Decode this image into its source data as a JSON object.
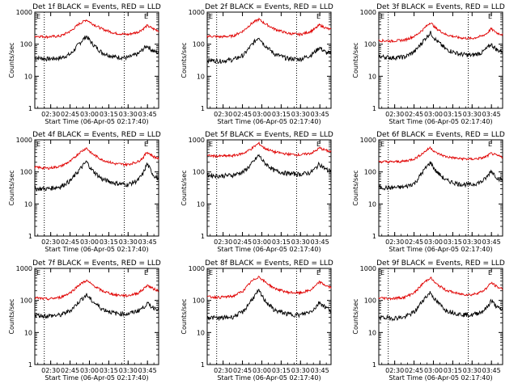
{
  "figure": {
    "background": "#ffffff",
    "events_color": "#000000",
    "lld_color": "#e00000"
  },
  "chart_data": [
    {
      "type": "line",
      "title": "Det 1f BLACK = Events, RED = LLD",
      "xlabel": "Start Time (06-Apr-05 02:17:40)",
      "ylabel": "Counts/sec",
      "y_scale": "log",
      "ylim": [
        1,
        1000
      ],
      "yticks": [
        "1",
        "10",
        "100",
        "1000"
      ],
      "xticks": [
        "02:30",
        "02:45",
        "03:00",
        "03:15",
        "03:30",
        "03:45"
      ],
      "x_range_minutes_after_start": [
        0,
        96
      ],
      "vertical_dotted_lines": [
        "02:25",
        "03:27"
      ],
      "corner_marks": [
        "E",
        "E"
      ],
      "series": [
        {
          "name": "Events",
          "color": "#000000",
          "x_minutes": [
            0,
            10,
            20,
            28,
            34,
            40,
            44,
            52,
            62,
            72,
            80,
            84,
            87,
            92,
            96
          ],
          "y": [
            38,
            35,
            37,
            50,
            100,
            180,
            110,
            55,
            40,
            38,
            50,
            70,
            90,
            60,
            55
          ]
        },
        {
          "name": "LLD",
          "color": "#e00000",
          "x_minutes": [
            0,
            10,
            20,
            28,
            34,
            40,
            44,
            52,
            62,
            72,
            80,
            84,
            87,
            92,
            96
          ],
          "y": [
            180,
            170,
            180,
            260,
            420,
            580,
            450,
            300,
            220,
            200,
            240,
            300,
            380,
            300,
            260
          ]
        }
      ]
    },
    {
      "type": "line",
      "title": "Det 2f BLACK = Events, RED = LLD",
      "xlabel": "Start Time (06-Apr-05 02:17:40)",
      "ylabel": "Counts/sec",
      "y_scale": "log",
      "ylim": [
        1,
        1000
      ],
      "yticks": [
        "1",
        "10",
        "100",
        "1000"
      ],
      "xticks": [
        "02:30",
        "02:45",
        "03:00",
        "03:15",
        "03:30",
        "03:45"
      ],
      "x_range_minutes_after_start": [
        0,
        96
      ],
      "vertical_dotted_lines": [
        "02:25",
        "03:27"
      ],
      "corner_marks": [
        "E",
        "E"
      ],
      "series": [
        {
          "name": "Events",
          "color": "#000000",
          "x_minutes": [
            0,
            10,
            20,
            28,
            34,
            40,
            44,
            52,
            62,
            72,
            80,
            84,
            87,
            92,
            96
          ],
          "y": [
            32,
            30,
            33,
            45,
            90,
            170,
            100,
            50,
            36,
            34,
            45,
            60,
            80,
            55,
            50
          ]
        },
        {
          "name": "LLD",
          "color": "#e00000",
          "x_minutes": [
            0,
            10,
            20,
            28,
            34,
            40,
            44,
            52,
            62,
            72,
            80,
            84,
            87,
            92,
            96
          ],
          "y": [
            180,
            170,
            180,
            260,
            430,
            600,
            460,
            300,
            220,
            200,
            250,
            310,
            400,
            320,
            280
          ]
        }
      ]
    },
    {
      "type": "line",
      "title": "Det 3f BLACK = Events, RED = LLD",
      "xlabel": "Start Time (06-Apr-05 02:17:40)",
      "ylabel": "Counts/sec",
      "y_scale": "log",
      "ylim": [
        1,
        1000
      ],
      "yticks": [
        "1",
        "10",
        "100",
        "1000"
      ],
      "xticks": [
        "02:30",
        "02:45",
        "03:00",
        "03:15",
        "03:30",
        "03:45"
      ],
      "x_range_minutes_after_start": [
        0,
        96
      ],
      "vertical_dotted_lines": [
        "02:25",
        "03:27"
      ],
      "corner_marks": [
        "E",
        "E"
      ],
      "series": [
        {
          "name": "Events",
          "color": "#000000",
          "x_minutes": [
            0,
            10,
            20,
            28,
            34,
            40,
            44,
            52,
            62,
            72,
            80,
            84,
            87,
            92,
            96
          ],
          "y": [
            42,
            38,
            40,
            60,
            120,
            230,
            140,
            70,
            50,
            45,
            55,
            75,
            100,
            65,
            60
          ]
        },
        {
          "name": "LLD",
          "color": "#e00000",
          "x_minutes": [
            0,
            10,
            20,
            28,
            34,
            40,
            44,
            52,
            62,
            72,
            80,
            84,
            87,
            92,
            96
          ],
          "y": [
            130,
            125,
            135,
            180,
            280,
            480,
            320,
            200,
            160,
            150,
            180,
            220,
            300,
            220,
            200
          ]
        }
      ]
    },
    {
      "type": "line",
      "title": "Det 4f BLACK = Events, RED = LLD",
      "xlabel": "Start Time (06-Apr-05 02:17:40)",
      "ylabel": "Counts/sec",
      "y_scale": "log",
      "ylim": [
        1,
        1000
      ],
      "yticks": [
        "1",
        "10",
        "100",
        "1000"
      ],
      "xticks": [
        "02:30",
        "02:45",
        "03:00",
        "03:15",
        "03:30",
        "03:45"
      ],
      "x_range_minutes_after_start": [
        0,
        96
      ],
      "vertical_dotted_lines": [
        "02:25",
        "03:27"
      ],
      "corner_marks": [
        "E",
        "E"
      ],
      "series": [
        {
          "name": "Events",
          "color": "#000000",
          "x_minutes": [
            0,
            10,
            20,
            28,
            34,
            40,
            44,
            52,
            62,
            72,
            80,
            84,
            87,
            92,
            96
          ],
          "y": [
            30,
            30,
            35,
            55,
            110,
            210,
            120,
            60,
            45,
            40,
            55,
            90,
            180,
            80,
            60
          ]
        },
        {
          "name": "LLD",
          "color": "#e00000",
          "x_minutes": [
            0,
            10,
            20,
            28,
            34,
            40,
            44,
            52,
            62,
            72,
            80,
            84,
            87,
            92,
            96
          ],
          "y": [
            140,
            130,
            150,
            220,
            380,
            560,
            380,
            240,
            180,
            170,
            210,
            280,
            420,
            300,
            260
          ]
        }
      ]
    },
    {
      "type": "line",
      "title": "Det 5f BLACK = Events, RED = LLD",
      "xlabel": "Start Time (06-Apr-05 02:17:40)",
      "ylabel": "Counts/sec",
      "y_scale": "log",
      "ylim": [
        1,
        1000
      ],
      "yticks": [
        "1",
        "10",
        "100",
        "1000"
      ],
      "xticks": [
        "02:30",
        "02:45",
        "03:00",
        "03:15",
        "03:30",
        "03:45"
      ],
      "x_range_minutes_after_start": [
        0,
        96
      ],
      "vertical_dotted_lines": [
        "02:25",
        "03:27"
      ],
      "corner_marks": [
        "E",
        "E"
      ],
      "series": [
        {
          "name": "Events",
          "color": "#000000",
          "x_minutes": [
            0,
            10,
            20,
            28,
            34,
            40,
            44,
            52,
            62,
            72,
            80,
            84,
            87,
            92,
            96
          ],
          "y": [
            80,
            75,
            80,
            100,
            170,
            330,
            200,
            110,
            90,
            85,
            95,
            130,
            180,
            120,
            110
          ]
        },
        {
          "name": "LLD",
          "color": "#e00000",
          "x_minutes": [
            0,
            10,
            20,
            28,
            34,
            40,
            44,
            52,
            62,
            72,
            80,
            84,
            87,
            92,
            96
          ],
          "y": [
            320,
            310,
            320,
            380,
            520,
            780,
            560,
            420,
            360,
            340,
            380,
            450,
            560,
            470,
            430
          ]
        }
      ]
    },
    {
      "type": "line",
      "title": "Det 6f BLACK = Events, RED = LLD",
      "xlabel": "Start Time (06-Apr-05 02:17:40)",
      "ylabel": "Counts/sec",
      "y_scale": "log",
      "ylim": [
        1,
        1000
      ],
      "yticks": [
        "1",
        "10",
        "100",
        "1000"
      ],
      "xticks": [
        "02:30",
        "02:45",
        "03:00",
        "03:15",
        "03:30",
        "03:45"
      ],
      "x_range_minutes_after_start": [
        0,
        96
      ],
      "vertical_dotted_lines": [
        "02:25",
        "03:27"
      ],
      "corner_marks": [
        "E",
        "E"
      ],
      "series": [
        {
          "name": "Events",
          "color": "#000000",
          "x_minutes": [
            0,
            10,
            20,
            28,
            34,
            40,
            44,
            52,
            62,
            72,
            80,
            84,
            87,
            92,
            96
          ],
          "y": [
            33,
            32,
            34,
            45,
            100,
            200,
            110,
            55,
            42,
            40,
            50,
            70,
            110,
            65,
            55
          ]
        },
        {
          "name": "LLD",
          "color": "#e00000",
          "x_minutes": [
            0,
            10,
            20,
            28,
            34,
            40,
            44,
            52,
            62,
            72,
            80,
            84,
            87,
            92,
            96
          ],
          "y": [
            210,
            205,
            215,
            260,
            380,
            580,
            400,
            300,
            260,
            250,
            270,
            310,
            380,
            320,
            290
          ]
        }
      ]
    },
    {
      "type": "line",
      "title": "Det 7f BLACK = Events, RED = LLD",
      "xlabel": "Start Time (06-Apr-05 02:17:40)",
      "ylabel": "Counts/sec",
      "y_scale": "log",
      "ylim": [
        1,
        1000
      ],
      "yticks": [
        "1",
        "10",
        "100",
        "1000"
      ],
      "xticks": [
        "02:30",
        "02:45",
        "03:00",
        "03:15",
        "03:30",
        "03:45"
      ],
      "x_range_minutes_after_start": [
        0,
        96
      ],
      "vertical_dotted_lines": [
        "02:25",
        "03:27"
      ],
      "corner_marks": [
        "E",
        "E"
      ],
      "series": [
        {
          "name": "Events",
          "color": "#000000",
          "x_minutes": [
            0,
            10,
            20,
            28,
            34,
            40,
            44,
            52,
            62,
            72,
            80,
            84,
            87,
            92,
            96
          ],
          "y": [
            35,
            33,
            35,
            50,
            90,
            150,
            100,
            55,
            40,
            38,
            48,
            60,
            80,
            60,
            55
          ]
        },
        {
          "name": "LLD",
          "color": "#e00000",
          "x_minutes": [
            0,
            10,
            20,
            28,
            34,
            40,
            44,
            52,
            62,
            72,
            80,
            84,
            87,
            92,
            96
          ],
          "y": [
            120,
            110,
            125,
            180,
            300,
            420,
            320,
            200,
            150,
            140,
            170,
            220,
            300,
            230,
            200
          ]
        }
      ]
    },
    {
      "type": "line",
      "title": "Det 8f BLACK = Events, RED = LLD",
      "xlabel": "Start Time (06-Apr-05 02:17:40)",
      "ylabel": "Counts/sec",
      "y_scale": "log",
      "ylim": [
        1,
        1000
      ],
      "yticks": [
        "1",
        "10",
        "100",
        "1000"
      ],
      "xticks": [
        "02:30",
        "02:45",
        "03:00",
        "03:15",
        "03:30",
        "03:45"
      ],
      "x_range_minutes_after_start": [
        0,
        96
      ],
      "vertical_dotted_lines": [
        "02:25",
        "03:27"
      ],
      "corner_marks": [
        "E",
        "E"
      ],
      "series": [
        {
          "name": "Events",
          "color": "#000000",
          "x_minutes": [
            0,
            10,
            20,
            28,
            34,
            40,
            44,
            52,
            62,
            72,
            80,
            84,
            87,
            92,
            96
          ],
          "y": [
            30,
            28,
            31,
            45,
            100,
            200,
            110,
            50,
            38,
            35,
            45,
            60,
            90,
            60,
            50
          ]
        },
        {
          "name": "LLD",
          "color": "#e00000",
          "x_minutes": [
            0,
            10,
            20,
            28,
            34,
            40,
            44,
            52,
            62,
            72,
            80,
            84,
            87,
            92,
            96
          ],
          "y": [
            130,
            125,
            135,
            200,
            380,
            560,
            400,
            240,
            180,
            170,
            210,
            280,
            380,
            290,
            250
          ]
        }
      ]
    },
    {
      "type": "line",
      "title": "Det 9f BLACK = Events, RED = LLD",
      "xlabel": "Start Time (06-Apr-05 02:17:40)",
      "ylabel": "Counts/sec",
      "y_scale": "log",
      "ylim": [
        1,
        1000
      ],
      "yticks": [
        "1",
        "10",
        "100",
        "1000"
      ],
      "xticks": [
        "02:30",
        "02:45",
        "03:00",
        "03:15",
        "03:30",
        "03:45"
      ],
      "x_range_minutes_after_start": [
        0,
        96
      ],
      "vertical_dotted_lines": [
        "02:25",
        "03:27"
      ],
      "corner_marks": [
        "E",
        "E"
      ],
      "series": [
        {
          "name": "Events",
          "color": "#000000",
          "x_minutes": [
            0,
            10,
            20,
            28,
            34,
            40,
            44,
            52,
            62,
            72,
            80,
            84,
            87,
            92,
            96
          ],
          "y": [
            30,
            28,
            30,
            45,
            100,
            180,
            100,
            50,
            38,
            35,
            45,
            60,
            100,
            60,
            50
          ]
        },
        {
          "name": "LLD",
          "color": "#e00000",
          "x_minutes": [
            0,
            10,
            20,
            28,
            34,
            40,
            44,
            52,
            62,
            72,
            80,
            84,
            87,
            92,
            96
          ],
          "y": [
            120,
            115,
            125,
            180,
            330,
            520,
            340,
            210,
            160,
            150,
            190,
            250,
            360,
            260,
            230
          ]
        }
      ]
    }
  ]
}
